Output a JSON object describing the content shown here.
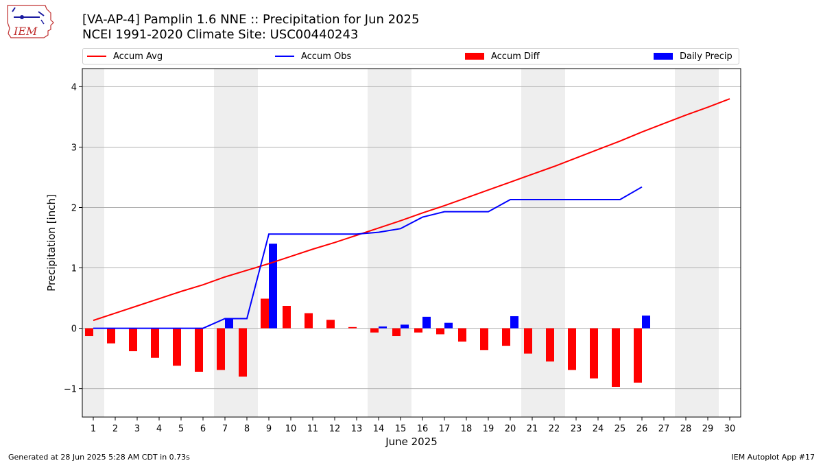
{
  "header": {
    "title_line1": "[VA-AP-4] Pamplin 1.6 NNE :: Precipitation for Jun 2025",
    "title_line2": "NCEI 1991-2020 Climate Site: USC00440243"
  },
  "logo": {
    "text": "IEM"
  },
  "footer": {
    "left": "Generated at 28 Jun 2025 5:28 AM CDT in 0.73s",
    "right": "IEM Autoplot App #17"
  },
  "colors": {
    "avg": "#ff0000",
    "obs": "#0000ff",
    "diff": "#ff0000",
    "daily": "#0000ff",
    "weekend": "#eeeeee",
    "grid": "#b0b0b0"
  },
  "chart_data": {
    "type": "bar",
    "xlabel": "June 2025",
    "ylabel": "Precipitation [inch]",
    "xlim": [
      0.5,
      30.5
    ],
    "ylim": [
      -1.47,
      4.3
    ],
    "yticks": [
      -1,
      0,
      1,
      2,
      3,
      4
    ],
    "grid": "horizontal",
    "legend_placement": "top",
    "days": [
      1,
      2,
      3,
      4,
      5,
      6,
      7,
      8,
      9,
      10,
      11,
      12,
      13,
      14,
      15,
      16,
      17,
      18,
      19,
      20,
      21,
      22,
      23,
      24,
      25,
      26,
      27,
      28,
      29,
      30
    ],
    "shaded_days": [
      1,
      7,
      8,
      14,
      15,
      21,
      22,
      28,
      29
    ],
    "legend": [
      {
        "name": "Accum Avg",
        "kind": "line",
        "color": "#ff0000"
      },
      {
        "name": "Accum Obs",
        "kind": "line",
        "color": "#0000ff"
      },
      {
        "name": "Accum Diff",
        "kind": "box",
        "color": "#ff0000"
      },
      {
        "name": "Daily Precip",
        "kind": "box",
        "color": "#0000ff"
      }
    ],
    "accum_avg": [
      0.13,
      0.25,
      0.37,
      0.49,
      0.61,
      0.72,
      0.85,
      0.96,
      1.07,
      1.19,
      1.31,
      1.42,
      1.54,
      1.66,
      1.78,
      1.91,
      2.03,
      2.16,
      2.29,
      2.42,
      2.55,
      2.68,
      2.82,
      2.96,
      3.1,
      3.25,
      3.39,
      3.53,
      3.66,
      3.8
    ],
    "accum_obs": [
      0.0,
      0.0,
      0.0,
      0.0,
      0.0,
      0.0,
      0.16,
      0.16,
      1.56,
      1.56,
      1.56,
      1.56,
      1.56,
      1.59,
      1.65,
      1.84,
      1.93,
      1.93,
      1.93,
      2.13,
      2.13,
      2.13,
      2.13,
      2.13,
      2.13,
      2.34
    ],
    "accum_diff": [
      -0.13,
      -0.25,
      -0.38,
      -0.49,
      -0.62,
      -0.72,
      -0.69,
      -0.8,
      0.49,
      0.37,
      0.25,
      0.14,
      0.02,
      -0.07,
      -0.13,
      -0.07,
      -0.1,
      -0.22,
      -0.36,
      -0.29,
      -0.42,
      -0.55,
      -0.69,
      -0.83,
      -0.97,
      -0.9
    ],
    "daily_precip": [
      0.0,
      0.0,
      0.0,
      0.0,
      0.0,
      0.0,
      0.16,
      0.0,
      1.4,
      0.0,
      0.0,
      0.0,
      0.0,
      0.03,
      0.06,
      0.19,
      0.09,
      0.0,
      0.0,
      0.2,
      0.0,
      0.0,
      0.0,
      0.0,
      0.0,
      0.21
    ]
  }
}
